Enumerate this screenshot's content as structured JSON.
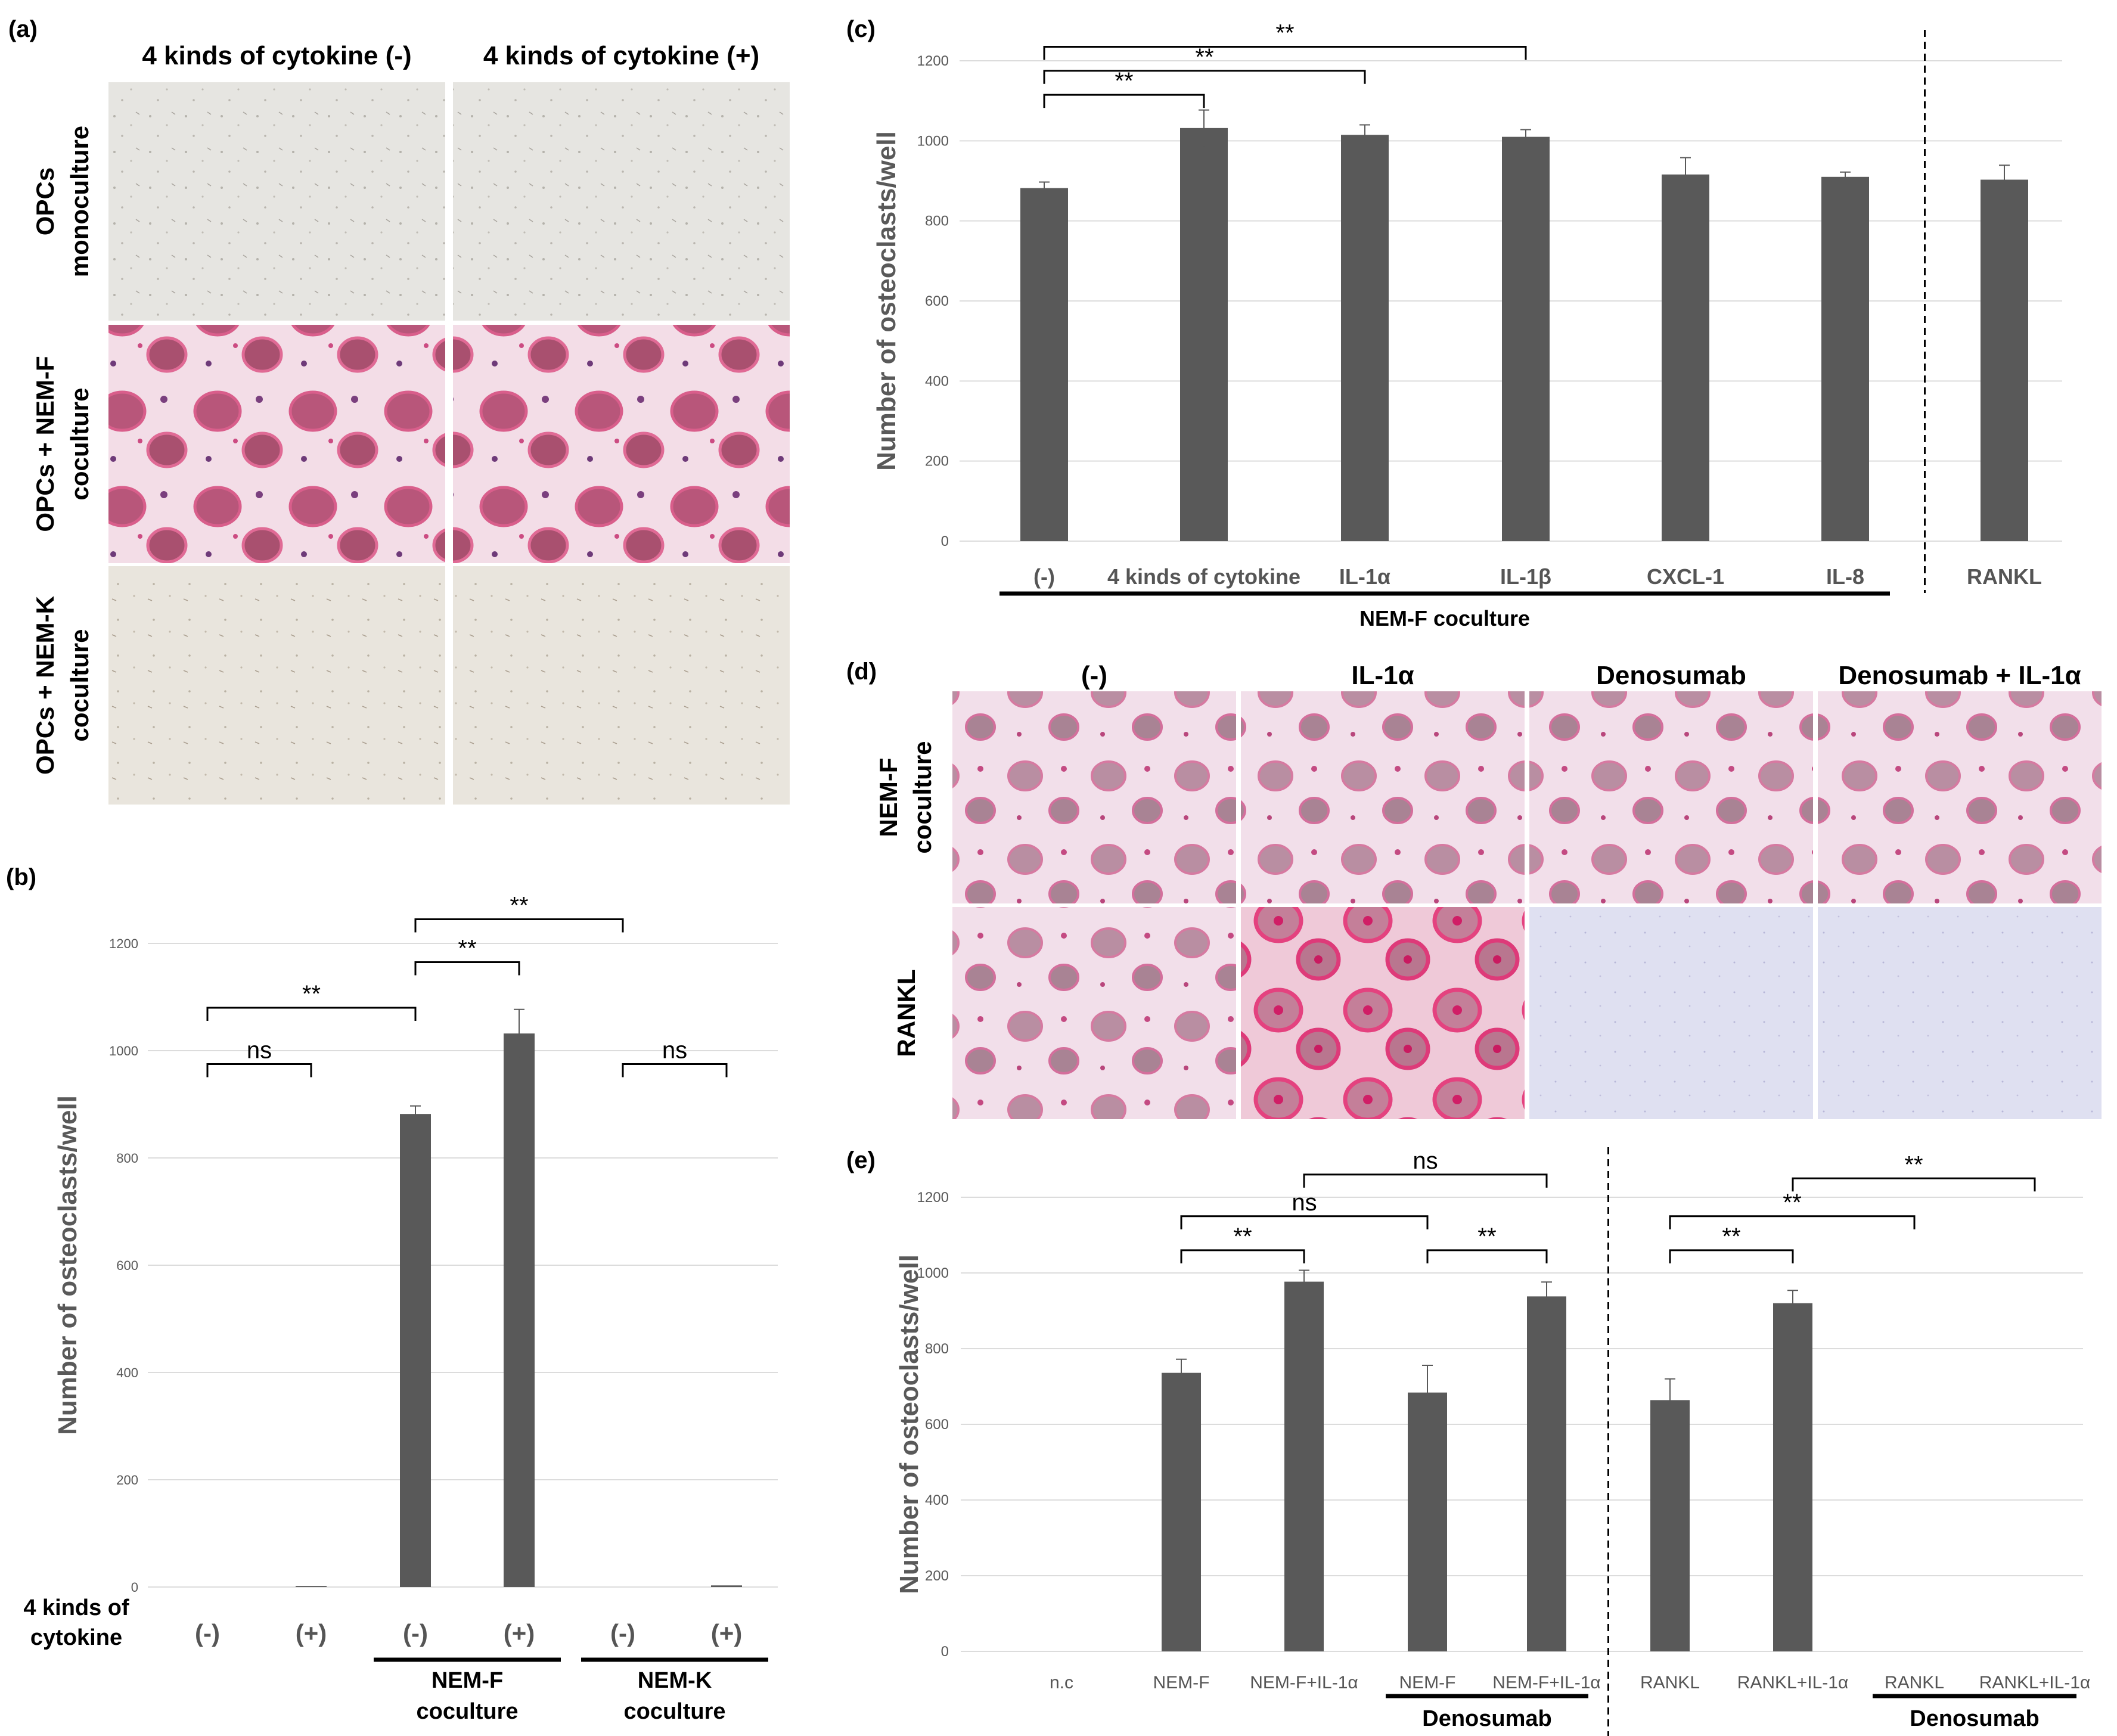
{
  "panel_a": {
    "label": "(a)",
    "col_headers": [
      "4 kinds of cytokine (-)",
      "4 kinds of cytokine (+)"
    ],
    "rows": [
      {
        "line1": "OPCs",
        "line2": "monoculture",
        "style": "sparse-light"
      },
      {
        "line1": "OPCs + NEM-F",
        "line2": "coculture",
        "style": "dense-magenta"
      },
      {
        "line1": "OPCs + NEM-K",
        "line2": "coculture",
        "style": "sparse-beige"
      }
    ]
  },
  "panel_d": {
    "label": "(d)",
    "col_headers": [
      "(-)",
      "IL-1α",
      "Denosumab",
      "Denosumab + IL-1α"
    ],
    "rows": [
      {
        "line1": "NEM-F",
        "line2": "coculture",
        "tiles": [
          "pink-cells",
          "pink-cells",
          "pink-cells",
          "pink-cells"
        ]
      },
      {
        "line1": "RANKL",
        "line2": "",
        "tiles": [
          "pink-cells",
          "red-dense",
          "blue-empty",
          "blue-empty"
        ]
      }
    ]
  },
  "chart_data": [
    {
      "id": "b",
      "label": "(b)",
      "type": "bar",
      "ylabel": "Number of osteoclasts/well",
      "ylim": [
        0,
        1200
      ],
      "yticks": [
        0,
        200,
        400,
        600,
        800,
        1000,
        1200
      ],
      "row_label_line1": "4 kinds of",
      "row_label_line2": "cytokine",
      "categories": [
        "(-)",
        "(+)",
        "(-)",
        "(+)",
        "(-)",
        "(+)"
      ],
      "values": [
        0,
        2,
        882,
        1032,
        0,
        3
      ],
      "errors": [
        0,
        0,
        15,
        45,
        0,
        0
      ],
      "groups": [
        {
          "line1": "NEM-F",
          "line2": "coculture",
          "from": 2,
          "to": 3
        },
        {
          "line1": "NEM-K",
          "line2": "coculture",
          "from": 4,
          "to": 5
        }
      ],
      "brackets": [
        {
          "from": 0,
          "to": 1,
          "label": "ns",
          "level": 975
        },
        {
          "from": 4,
          "to": 5,
          "label": "ns",
          "level": 975
        },
        {
          "from": 0,
          "to": 2,
          "label": "**",
          "level": 1080
        },
        {
          "from": 2,
          "to": 3,
          "label": "**",
          "level": 1165
        },
        {
          "from": 2,
          "to": 4,
          "label": "**",
          "level": 1245
        }
      ],
      "bar_color": "#595959"
    },
    {
      "id": "c",
      "label": "(c)",
      "type": "bar",
      "ylabel": "Number of osteoclasts/well",
      "ylim": [
        0,
        1200
      ],
      "yticks": [
        0,
        200,
        400,
        600,
        800,
        1000,
        1200
      ],
      "categories": [
        "(-)",
        "4 kinds of cytokine",
        "IL-1α",
        "IL-1β",
        "CXCL-1",
        "IL-8",
        "RANKL"
      ],
      "values": [
        882,
        1032,
        1015,
        1010,
        916,
        910,
        903
      ],
      "errors": [
        15,
        45,
        25,
        18,
        42,
        12,
        36
      ],
      "groups": [
        {
          "line1": "NEM-F coculture",
          "line2": "",
          "from": 0,
          "to": 5
        }
      ],
      "brackets": [
        {
          "from": 0,
          "to": 1,
          "label": "**",
          "level": 1115
        },
        {
          "from": 0,
          "to": 2,
          "label": "**",
          "level": 1175
        },
        {
          "from": 0,
          "to": 3,
          "label": "**",
          "level": 1235
        }
      ],
      "separator_after": 5,
      "bar_color": "#595959"
    },
    {
      "id": "e",
      "label": "(e)",
      "type": "bar",
      "ylabel": "Number of osteoclasts/well",
      "ylim": [
        0,
        1200
      ],
      "yticks": [
        0,
        200,
        400,
        600,
        800,
        1000,
        1200
      ],
      "categories": [
        "n.c",
        "NEM-F",
        "NEM-F+IL-1α",
        "NEM-F",
        "NEM-F+IL-1α",
        "RANKL",
        "RANKL+IL-1α",
        "RANKL",
        "RANKL+IL-1α"
      ],
      "values": [
        0,
        736,
        977,
        684,
        938,
        664,
        920,
        0,
        0
      ],
      "errors": [
        0,
        36,
        30,
        72,
        38,
        56,
        34,
        0,
        0
      ],
      "groups": [
        {
          "line1": "Denosumab",
          "line2": "",
          "from": 3,
          "to": 4
        },
        {
          "line1": "Denosumab",
          "line2": "",
          "from": 7,
          "to": 8
        }
      ],
      "brackets": [
        {
          "from": 1,
          "to": 2,
          "label": "**",
          "level": 1060
        },
        {
          "from": 3,
          "to": 4,
          "label": "**",
          "level": 1060
        },
        {
          "from": 1,
          "to": 3,
          "label": "ns",
          "level": 1150
        },
        {
          "from": 2,
          "to": 4,
          "label": "ns",
          "level": 1260
        },
        {
          "from": 5,
          "to": 6,
          "label": "**",
          "level": 1060
        },
        {
          "from": 5,
          "to": 7,
          "label": "**",
          "level": 1150
        },
        {
          "from": 6,
          "to": 8,
          "label": "**",
          "level": 1250
        }
      ],
      "separator_after": 4,
      "bar_color": "#595959"
    }
  ]
}
